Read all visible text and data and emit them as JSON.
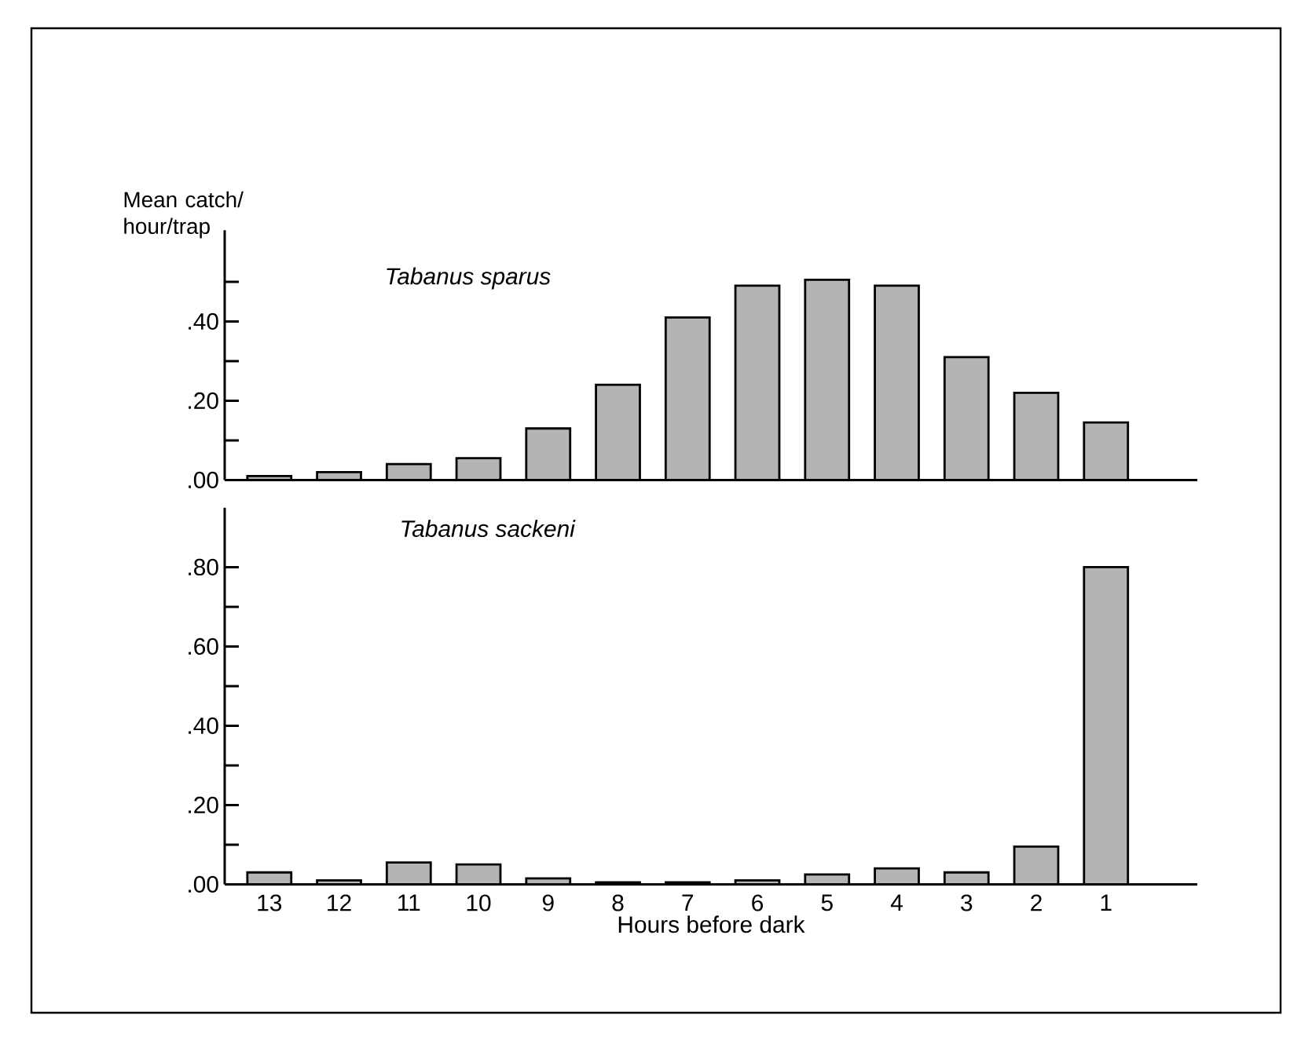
{
  "chart_data": [
    {
      "type": "bar",
      "title": "Tabanus sparus",
      "ylabel": "Mean catch/ hour/trap",
      "categories": [
        "13",
        "12",
        "11",
        "10",
        "9",
        "8",
        "7",
        "6",
        "5",
        "4",
        "3",
        "2",
        "1"
      ],
      "values": [
        0.01,
        0.02,
        0.04,
        0.055,
        0.13,
        0.24,
        0.41,
        0.49,
        0.505,
        0.49,
        0.31,
        0.22,
        0.145
      ],
      "color": "#b4b4b4",
      "ylim": [
        0,
        0.63
      ],
      "yticks": [
        {
          "value": 0,
          "label": ".00"
        },
        {
          "value": 0.1,
          "label": null
        },
        {
          "value": 0.2,
          "label": ".20"
        },
        {
          "value": 0.3,
          "label": null
        },
        {
          "value": 0.4,
          "label": ".40"
        },
        {
          "value": 0.5,
          "label": null
        }
      ],
      "tick_labels": "y"
    },
    {
      "type": "bar",
      "title": "Tabanus sackeni",
      "xlabel": "Hours before dark",
      "categories": [
        "13",
        "12",
        "11",
        "10",
        "9",
        "8",
        "7",
        "6",
        "5",
        "4",
        "3",
        "2",
        "1"
      ],
      "values": [
        0.03,
        0.01,
        0.055,
        0.05,
        0.015,
        0.005,
        0.005,
        0.01,
        0.025,
        0.04,
        0.03,
        0.095,
        0.8
      ],
      "color": "#b4b4b4",
      "ylim": [
        0,
        0.95
      ],
      "yticks": [
        {
          "value": 0,
          "label": ".00"
        },
        {
          "value": 0.1,
          "label": null
        },
        {
          "value": 0.2,
          "label": ".20"
        },
        {
          "value": 0.3,
          "label": null
        },
        {
          "value": 0.4,
          "label": ".40"
        },
        {
          "value": 0.5,
          "label": null
        },
        {
          "value": 0.6,
          "label": ".60"
        },
        {
          "value": 0.7,
          "label": null
        },
        {
          "value": 0.8,
          "label": ".80"
        }
      ]
    }
  ]
}
